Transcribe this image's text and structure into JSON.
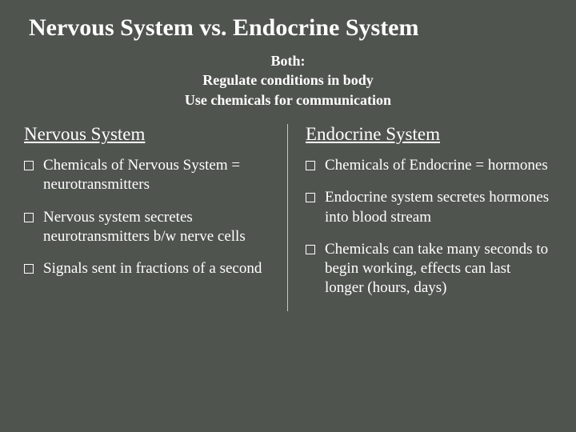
{
  "title": "Nervous System vs. Endocrine System",
  "subtitle": {
    "line1": "Both:",
    "line2": "Regulate conditions in body",
    "line3": "Use chemicals for communication"
  },
  "columns": {
    "left": {
      "heading": "Nervous System",
      "items": [
        "Chemicals of Nervous System = neurotransmitters",
        "Nervous system secretes neurotransmitters b/w nerve cells",
        "Signals sent in fractions of a second"
      ]
    },
    "right": {
      "heading": "Endocrine System",
      "items": [
        "Chemicals of Endocrine = hormones",
        "Endocrine system secretes hormones into blood stream",
        "Chemicals can take many seconds to begin working, effects can last longer (hours, days)"
      ]
    }
  },
  "colors": {
    "background": "#50544f",
    "text": "#ffffff",
    "divider": "#c8c8c3"
  },
  "typography": {
    "title_fontsize": 30,
    "subtitle_fontsize": 18,
    "heading_fontsize": 23,
    "body_fontsize": 19,
    "font_family": "Georgia, serif"
  }
}
